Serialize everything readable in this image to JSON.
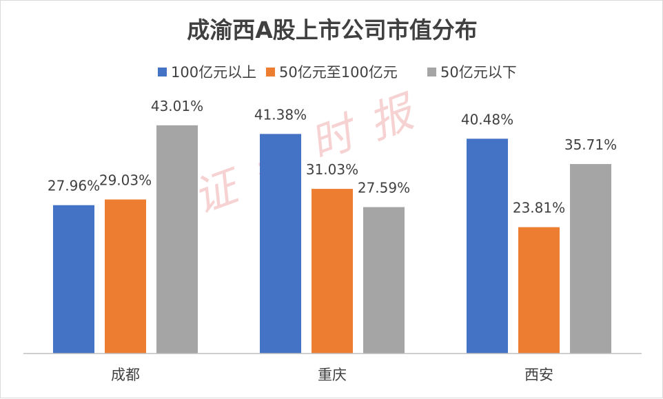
{
  "chart_data": {
    "type": "bar",
    "title": "成渝西A股上市公司市值分布",
    "categories": [
      "成都",
      "重庆",
      "西安"
    ],
    "series": [
      {
        "name": "100亿元以上",
        "values": [
          27.96,
          41.38,
          40.48
        ],
        "labels": [
          "27.96%",
          "41.38%",
          "40.48%"
        ],
        "color": "#4472c4"
      },
      {
        "name": "50亿元至100亿元",
        "values": [
          29.03,
          31.03,
          23.81
        ],
        "labels": [
          "29.03%",
          "31.03%",
          "23.81%"
        ],
        "color": "#ed7d31"
      },
      {
        "name": "50亿元以下",
        "values": [
          43.01,
          27.59,
          35.71
        ],
        "labels": [
          "43.01%",
          "27.59%",
          "35.71%"
        ],
        "color": "#a5a5a5"
      }
    ],
    "ylim": [
      0,
      50
    ],
    "grid": false,
    "legend_position": "top"
  },
  "watermark": "证券时报",
  "colors": {
    "axis": "#bfbfbf",
    "text": "#404040"
  }
}
